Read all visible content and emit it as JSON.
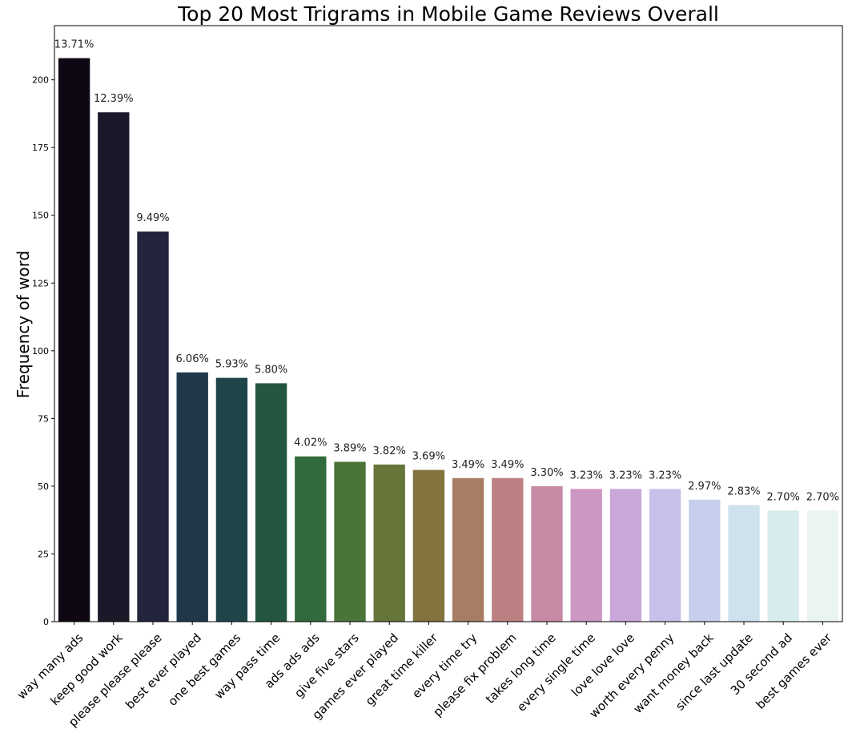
{
  "chart_data": {
    "type": "bar",
    "title": "Top 20 Most Trigrams in Mobile Game Reviews Overall",
    "xlabel": "",
    "ylabel": "Frequency of word",
    "ylim": [
      0,
      220
    ],
    "yticks": [
      0,
      25,
      50,
      75,
      100,
      125,
      150,
      175,
      200
    ],
    "grid": false,
    "legend": "none",
    "categories": [
      "way many ads",
      "keep good work",
      "please please please",
      "best ever played",
      "one best games",
      "way pass time",
      "ads ads ads",
      "give five stars",
      "games ever played",
      "great time killer",
      "every time try",
      "please fix problem",
      "takes long time",
      "every single time",
      "love love love",
      "worth every penny",
      "want money back",
      "since last update",
      "30 second ad",
      "best games ever"
    ],
    "values": [
      208,
      188,
      144,
      92,
      90,
      88,
      61,
      59,
      58,
      56,
      53,
      53,
      50,
      49,
      49,
      49,
      45,
      43,
      41,
      41
    ],
    "data_labels": [
      "13.71%",
      "12.39%",
      "9.49%",
      "6.06%",
      "5.93%",
      "5.80%",
      "4.02%",
      "3.89%",
      "3.82%",
      "3.69%",
      "3.49%",
      "3.49%",
      "3.30%",
      "3.23%",
      "3.23%",
      "3.23%",
      "2.97%",
      "2.83%",
      "2.70%",
      "2.70%"
    ],
    "colors": [
      "#0f0814",
      "#1c1829",
      "#22253b",
      "#20374a",
      "#1e4649",
      "#225640",
      "#316a3d",
      "#4b7538",
      "#667539",
      "#83733f",
      "#a77d63",
      "#bd8082",
      "#c68aa5",
      "#cd97c3",
      "#c9a7da",
      "#c7c0ea",
      "#c6d0ec",
      "#cde2ec",
      "#d7ecec",
      "#eaf4f1"
    ]
  }
}
